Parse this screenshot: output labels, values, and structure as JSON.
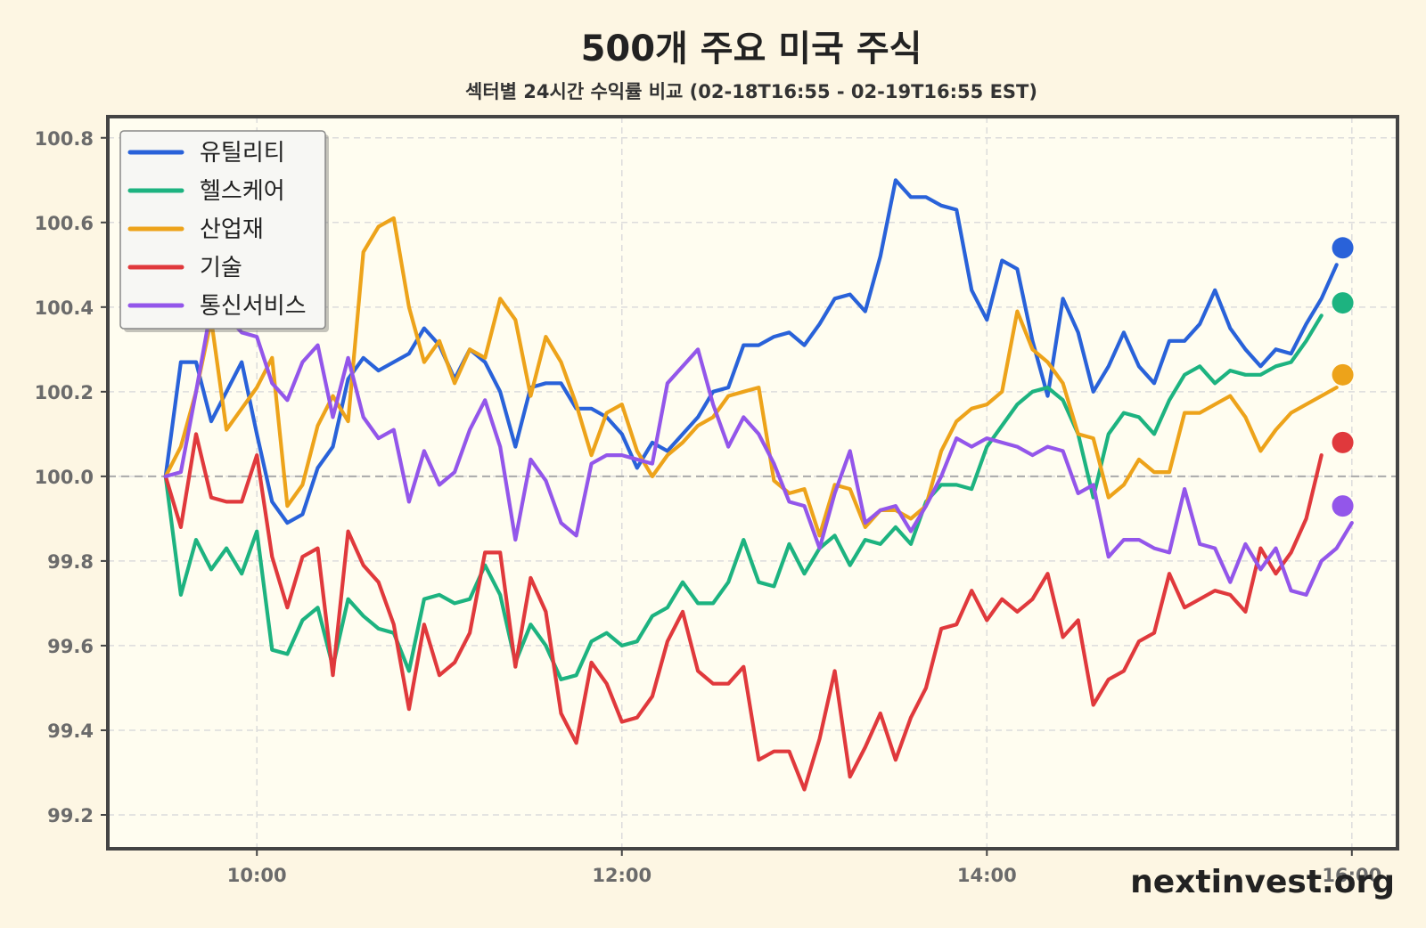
{
  "chart_data": {
    "type": "line",
    "title": "500개 주요 미국 주식",
    "subtitle": "섹터별 24시간 수익률 비교 (02-18T16:55 - 02-19T16:55 EST)",
    "watermark": "nextinvest.org",
    "x_ticks": [
      {
        "t": 600,
        "label": "10:00"
      },
      {
        "t": 720,
        "label": "12:00"
      },
      {
        "t": 840,
        "label": "14:00"
      },
      {
        "t": 960,
        "label": "16:00"
      }
    ],
    "y_ticks": [
      99.2,
      99.4,
      99.6,
      99.8,
      100.0,
      100.2,
      100.4,
      100.6,
      100.8
    ],
    "xlim": [
      551,
      975
    ],
    "ylim": [
      99.12,
      100.85
    ],
    "baseline": 100.0,
    "grid": true,
    "legend_position": "top-left",
    "x_start": 570,
    "x_step": 5,
    "end_marker_x": 957,
    "series": [
      {
        "name": "유틸리티",
        "color": "#2962d9",
        "end_value": 100.54,
        "values": [
          100.0,
          100.27,
          100.27,
          100.13,
          100.2,
          100.27,
          100.1,
          99.94,
          99.89,
          99.91,
          100.02,
          100.07,
          100.23,
          100.28,
          100.25,
          100.27,
          100.29,
          100.35,
          100.31,
          100.23,
          100.3,
          100.27,
          100.2,
          100.07,
          100.21,
          100.22,
          100.22,
          100.16,
          100.16,
          100.14,
          100.1,
          100.02,
          100.08,
          100.06,
          100.1,
          100.14,
          100.2,
          100.21,
          100.31,
          100.31,
          100.33,
          100.34,
          100.31,
          100.36,
          100.42,
          100.43,
          100.39,
          100.52,
          100.7,
          100.66,
          100.66,
          100.64,
          100.63,
          100.44,
          100.37,
          100.51,
          100.49,
          100.32,
          100.19,
          100.42,
          100.34,
          100.2,
          100.26,
          100.34,
          100.26,
          100.22,
          100.32,
          100.32,
          100.36,
          100.44,
          100.35,
          100.3,
          100.26,
          100.3,
          100.29,
          100.36,
          100.42,
          100.5
        ]
      },
      {
        "name": "헬스케어",
        "color": "#1db380",
        "end_value": 100.41,
        "values": [
          100.0,
          99.72,
          99.85,
          99.78,
          99.83,
          99.77,
          99.87,
          99.59,
          99.58,
          99.66,
          99.69,
          99.55,
          99.71,
          99.67,
          99.64,
          99.63,
          99.54,
          99.71,
          99.72,
          99.7,
          99.71,
          99.79,
          99.72,
          99.56,
          99.65,
          99.6,
          99.52,
          99.53,
          99.61,
          99.63,
          99.6,
          99.61,
          99.67,
          99.69,
          99.75,
          99.7,
          99.7,
          99.75,
          99.85,
          99.75,
          99.74,
          99.84,
          99.77,
          99.83,
          99.86,
          99.79,
          99.85,
          99.84,
          99.88,
          99.84,
          99.94,
          99.98,
          99.98,
          99.97,
          100.07,
          100.12,
          100.17,
          100.2,
          100.21,
          100.18,
          100.1,
          99.95,
          100.1,
          100.15,
          100.14,
          100.1,
          100.18,
          100.24,
          100.26,
          100.22,
          100.25,
          100.24,
          100.24,
          100.26,
          100.27,
          100.32,
          100.38
        ]
      },
      {
        "name": "산업재",
        "color": "#eda31a",
        "end_value": 100.24,
        "values": [
          100.0,
          100.07,
          100.2,
          100.37,
          100.11,
          100.16,
          100.21,
          100.28,
          99.93,
          99.98,
          100.12,
          100.19,
          100.13,
          100.53,
          100.59,
          100.61,
          100.4,
          100.27,
          100.32,
          100.22,
          100.3,
          100.28,
          100.42,
          100.37,
          100.19,
          100.33,
          100.27,
          100.17,
          100.05,
          100.15,
          100.17,
          100.06,
          100.0,
          100.05,
          100.08,
          100.12,
          100.14,
          100.19,
          100.2,
          100.21,
          99.99,
          99.96,
          99.97,
          99.86,
          99.98,
          99.97,
          99.88,
          99.92,
          99.92,
          99.9,
          99.93,
          100.06,
          100.13,
          100.16,
          100.17,
          100.2,
          100.39,
          100.3,
          100.27,
          100.22,
          100.1,
          100.09,
          99.95,
          99.98,
          100.04,
          100.01,
          100.01,
          100.15,
          100.15,
          100.17,
          100.19,
          100.14,
          100.06,
          100.11,
          100.15,
          100.17,
          100.19,
          100.21
        ]
      },
      {
        "name": "기술",
        "color": "#e0393c",
        "end_value": 100.08,
        "values": [
          100.0,
          99.88,
          100.1,
          99.95,
          99.94,
          99.94,
          100.05,
          99.81,
          99.69,
          99.81,
          99.83,
          99.53,
          99.87,
          99.79,
          99.75,
          99.65,
          99.45,
          99.65,
          99.53,
          99.56,
          99.63,
          99.82,
          99.82,
          99.55,
          99.76,
          99.68,
          99.44,
          99.37,
          99.56,
          99.51,
          99.42,
          99.43,
          99.48,
          99.61,
          99.68,
          99.54,
          99.51,
          99.51,
          99.55,
          99.33,
          99.35,
          99.35,
          99.26,
          99.38,
          99.54,
          99.29,
          99.36,
          99.44,
          99.33,
          99.43,
          99.5,
          99.64,
          99.65,
          99.73,
          99.66,
          99.71,
          99.68,
          99.71,
          99.77,
          99.62,
          99.66,
          99.46,
          99.52,
          99.54,
          99.61,
          99.63,
          99.77,
          99.69,
          99.71,
          99.73,
          99.72,
          99.68,
          99.83,
          99.77,
          99.82,
          99.9,
          100.05
        ]
      },
      {
        "name": "통신서비스",
        "color": "#9356ea",
        "end_value": 99.93,
        "values": [
          100.0,
          100.01,
          100.2,
          100.4,
          100.38,
          100.34,
          100.33,
          100.22,
          100.18,
          100.27,
          100.31,
          100.14,
          100.28,
          100.14,
          100.09,
          100.11,
          99.94,
          100.06,
          99.98,
          100.01,
          100.11,
          100.18,
          100.07,
          99.85,
          100.04,
          99.99,
          99.89,
          99.86,
          100.03,
          100.05,
          100.05,
          100.04,
          100.03,
          100.22,
          100.26,
          100.3,
          100.17,
          100.07,
          100.14,
          100.1,
          100.03,
          99.94,
          99.93,
          99.83,
          99.96,
          100.06,
          99.89,
          99.92,
          99.93,
          99.87,
          99.93,
          100.0,
          100.09,
          100.07,
          100.09,
          100.08,
          100.07,
          100.05,
          100.07,
          100.06,
          99.96,
          99.98,
          99.81,
          99.85,
          99.85,
          99.83,
          99.82,
          99.97,
          99.84,
          99.83,
          99.75,
          99.84,
          99.78,
          99.83,
          99.73,
          99.72,
          99.8,
          99.83,
          99.89
        ]
      }
    ]
  }
}
